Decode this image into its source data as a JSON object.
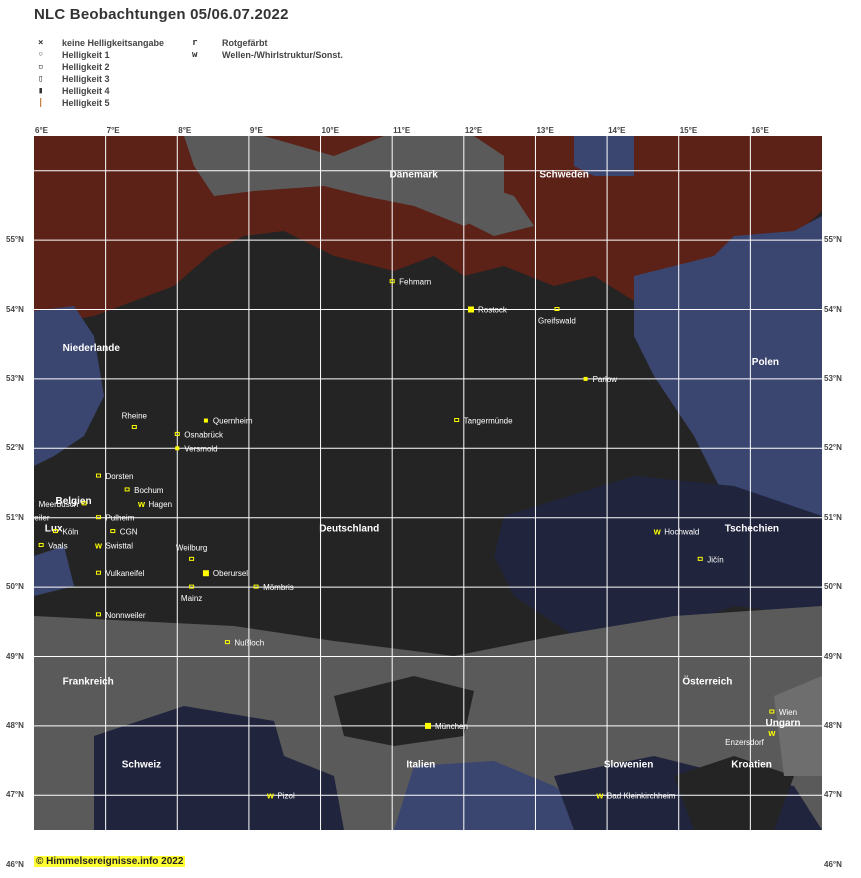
{
  "title": "NLC Beobachtungen 05/06.07.2022",
  "legend": {
    "left": [
      {
        "symbol": "×",
        "label": "keine Helligkeitsangabe"
      },
      {
        "symbol": "◦",
        "label": "Helligkeit 1"
      },
      {
        "symbol": "▫",
        "label": "Helligkeit 2"
      },
      {
        "symbol": "▯",
        "label": "Helligkeit 3"
      },
      {
        "symbol": "▮",
        "label": "Helligkeit 4"
      },
      {
        "symbol": "|",
        "label": "Helligkeit 5"
      }
    ],
    "right": [
      {
        "symbol": "r",
        "label": "Rotgefärbt"
      },
      {
        "symbol": "w",
        "label": "Wellen-/Whirlstruktur/Sonst."
      }
    ]
  },
  "axes": {
    "top": [
      "6°E",
      "7°E",
      "8°E",
      "9°E",
      "10°E",
      "11°E",
      "12°E",
      "13°E",
      "14°E",
      "15°E",
      "16°E"
    ],
    "bottom": [
      "6°E",
      "7°E",
      "8°E",
      "9°E",
      "10°E",
      "11°E",
      "12°E",
      "13°E",
      "14°E",
      "15°E",
      "16°E"
    ],
    "left": [
      "55°N",
      "54°N",
      "53°N",
      "52°N",
      "51°N",
      "50°N",
      "49°N",
      "48°N",
      "47°N",
      "46°N"
    ],
    "right": [
      "55°N",
      "54°N",
      "53°N",
      "52°N",
      "51°N",
      "50°N",
      "49°N",
      "48°N",
      "47°N",
      "46°N"
    ]
  },
  "countries": [
    {
      "name": "Dänemark",
      "lon": 11.3,
      "lat": 55.9
    },
    {
      "name": "Schweden",
      "lon": 13.4,
      "lat": 55.9
    },
    {
      "name": "Niederlande",
      "lon": 6.4,
      "lat": 53.4
    },
    {
      "name": "Polen",
      "lon": 16.4,
      "lat": 53.2
    },
    {
      "name": "Belgien",
      "lon": 6.3,
      "lat": 51.2
    },
    {
      "name": "Lux",
      "lon": 6.15,
      "lat": 50.8
    },
    {
      "name": "Deutschland",
      "lon": 10.4,
      "lat": 50.8
    },
    {
      "name": "Tschechien",
      "lon": 16.4,
      "lat": 50.8
    },
    {
      "name": "Frankreich",
      "lon": 6.4,
      "lat": 48.6
    },
    {
      "name": "Österreich",
      "lon": 15.4,
      "lat": 48.6
    },
    {
      "name": "Ungarn",
      "lon": 16.7,
      "lat": 48.0
    },
    {
      "name": "Schweiz",
      "lon": 7.5,
      "lat": 47.4
    },
    {
      "name": "Italien",
      "lon": 11.4,
      "lat": 47.4
    },
    {
      "name": "Slowenien",
      "lon": 14.3,
      "lat": 47.4
    },
    {
      "name": "Kroatien",
      "lon": 16.3,
      "lat": 47.4
    }
  ],
  "stations": [
    {
      "name": "Fehmarn",
      "lon": 11.0,
      "lat": 54.4,
      "mark": "box"
    },
    {
      "name": "Rostock",
      "lon": 12.1,
      "lat": 54.0,
      "mark": "big"
    },
    {
      "name": "Greifswald",
      "lon": 13.3,
      "lat": 54.0,
      "mark": "box",
      "label_below": true
    },
    {
      "name": "Parlow",
      "lon": 13.7,
      "lat": 53.0,
      "mark": "fill"
    },
    {
      "name": "Quernheim",
      "lon": 8.4,
      "lat": 52.4,
      "mark": "fill"
    },
    {
      "name": "Tangermünde",
      "lon": 11.9,
      "lat": 52.4,
      "mark": "box"
    },
    {
      "name": "Rheine",
      "lon": 7.4,
      "lat": 52.3,
      "mark": "box",
      "label_above": true
    },
    {
      "name": "Osnabrück",
      "lon": 8.0,
      "lat": 52.2,
      "mark": "box"
    },
    {
      "name": "Versmold",
      "lon": 8.0,
      "lat": 52.0,
      "mark": "fill"
    },
    {
      "name": "Dorsten",
      "lon": 6.9,
      "lat": 51.6,
      "mark": "box"
    },
    {
      "name": "Meerbusch",
      "lon": 6.7,
      "lat": 51.2,
      "mark": "box",
      "label_left": true
    },
    {
      "name": "Bochum",
      "lon": 7.3,
      "lat": 51.4,
      "mark": "box"
    },
    {
      "name": "Hagen",
      "lon": 7.5,
      "lat": 51.2,
      "mark": "w"
    },
    {
      "name": "Eschweiler",
      "lon": 6.3,
      "lat": 51.0,
      "mark": "none",
      "label_left": true
    },
    {
      "name": "Pulheim",
      "lon": 6.9,
      "lat": 51.0,
      "mark": "box"
    },
    {
      "name": "Köln",
      "lon": 6.3,
      "lat": 50.8,
      "mark": "box"
    },
    {
      "name": "CGN",
      "lon": 7.1,
      "lat": 50.8,
      "mark": "box"
    },
    {
      "name": "Vaals",
      "lon": 6.1,
      "lat": 50.6,
      "mark": "box"
    },
    {
      "name": "Swisttal",
      "lon": 6.9,
      "lat": 50.6,
      "mark": "w"
    },
    {
      "name": "Weilburg",
      "lon": 8.2,
      "lat": 50.4,
      "mark": "box",
      "label_above": true
    },
    {
      "name": "Vulkaneifel",
      "lon": 6.9,
      "lat": 50.2,
      "mark": "box"
    },
    {
      "name": "Oberursel",
      "lon": 8.4,
      "lat": 50.2,
      "mark": "big"
    },
    {
      "name": "Mainz",
      "lon": 8.2,
      "lat": 50.0,
      "mark": "box",
      "label_below": true
    },
    {
      "name": "Mömbris",
      "lon": 9.1,
      "lat": 50.0,
      "mark": "box"
    },
    {
      "name": "Nonnweiler",
      "lon": 6.9,
      "lat": 49.6,
      "mark": "box"
    },
    {
      "name": "Nußloch",
      "lon": 8.7,
      "lat": 49.2,
      "mark": "box"
    },
    {
      "name": "Hochwald",
      "lon": 14.7,
      "lat": 50.8,
      "mark": "w"
    },
    {
      "name": "Jičín",
      "lon": 15.3,
      "lat": 50.4,
      "mark": "box"
    },
    {
      "name": "München",
      "lon": 11.5,
      "lat": 48.0,
      "mark": "big"
    },
    {
      "name": "Wien",
      "lon": 16.3,
      "lat": 48.2,
      "mark": "box"
    },
    {
      "name": "Enzersdorf",
      "lon": 16.3,
      "lat": 47.9,
      "mark": "w",
      "label_below_left": true
    },
    {
      "name": "Pizol",
      "lon": 9.3,
      "lat": 47.0,
      "mark": "w"
    },
    {
      "name": "Bad Kleinkirchheim",
      "lon": 13.9,
      "lat": 47.0,
      "mark": "w"
    }
  ],
  "colors": {
    "sea_red": "#5c2117",
    "sea_grey": "#5a5a5a",
    "land_dark": "#242424",
    "land_blue": "#3a4570",
    "land_blue2": "#20243c",
    "grid": "#ffffff",
    "marker": "#ffff00"
  },
  "footer": "© Himmelsereignisse.info 2022"
}
